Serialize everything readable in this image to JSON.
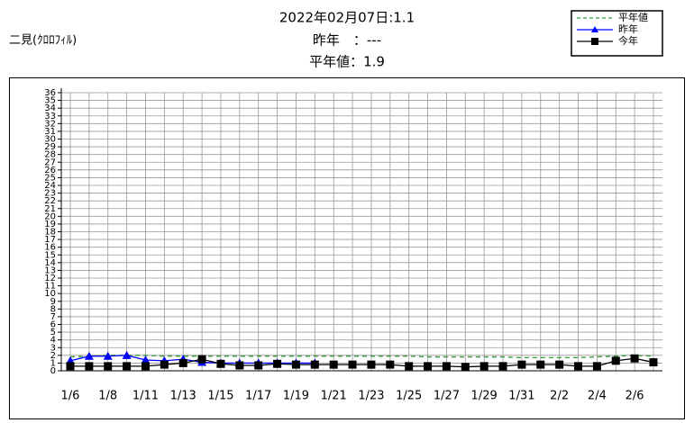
{
  "chart_data": {
    "type": "line",
    "title": "二見(ｸﾛﾛﾌｨﾙ)",
    "header_lines": [
      "2022年02月07日:1.1",
      "昨年　：---",
      "平年値：1.9"
    ],
    "categories": [
      "1/6",
      null,
      "1/8",
      null,
      "1/11",
      null,
      "1/13",
      null,
      "1/15",
      null,
      "1/17",
      null,
      "1/19",
      null,
      "1/21",
      null,
      "1/23",
      null,
      "1/25",
      null,
      "1/27",
      null,
      "1/29",
      null,
      "1/31",
      null,
      "2/2",
      null,
      "2/4",
      null,
      "2/6",
      null
    ],
    "series": [
      {
        "name": "平年値",
        "color": "#339933",
        "style": "dashed",
        "marker": "none",
        "values": [
          1.8,
          1.9,
          2.0,
          2.0,
          2.0,
          1.9,
          1.9,
          1.9,
          1.9,
          1.9,
          1.9,
          1.9,
          1.9,
          1.9,
          1.9,
          1.9,
          1.9,
          1.9,
          1.9,
          1.8,
          1.8,
          1.8,
          1.8,
          1.8,
          1.7,
          1.7,
          1.7,
          1.7,
          1.8,
          1.9,
          2.0,
          1.9
        ]
      },
      {
        "name": "昨年",
        "color": "#0000ff",
        "style": "solid",
        "marker": "triangle",
        "values": [
          1.3,
          1.9,
          1.9,
          2.0,
          1.4,
          1.3,
          1.5,
          1.1,
          1.0,
          1.0,
          1.0,
          1.0,
          1.0,
          1.0,
          null,
          null,
          null,
          null,
          null,
          null,
          null,
          null,
          null,
          null,
          null,
          null,
          null,
          null,
          null,
          null,
          null,
          null
        ]
      },
      {
        "name": "今年",
        "color": "#000000",
        "style": "solid",
        "marker": "square",
        "values": [
          0.6,
          0.6,
          0.6,
          0.6,
          0.6,
          0.8,
          1.0,
          1.5,
          0.9,
          0.7,
          0.7,
          0.9,
          0.8,
          0.8,
          0.8,
          0.8,
          0.8,
          0.8,
          0.6,
          0.6,
          0.6,
          0.5,
          0.6,
          0.6,
          0.8,
          0.8,
          0.8,
          0.6,
          0.6,
          1.3,
          1.6,
          1.1
        ]
      }
    ],
    "ylim": [
      0,
      36
    ],
    "yticks": [
      0,
      1,
      2,
      3,
      4,
      5,
      6,
      7,
      8,
      9,
      10,
      11,
      12,
      13,
      14,
      15,
      16,
      17,
      18,
      19,
      20,
      21,
      22,
      23,
      24,
      25,
      26,
      27,
      28,
      29,
      30,
      31,
      32,
      33,
      34,
      35,
      36
    ],
    "grid": true
  }
}
